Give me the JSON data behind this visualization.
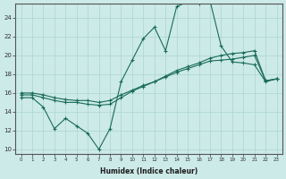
{
  "bg_color": "#cceae8",
  "grid_color": "#b0d8d8",
  "line_color": "#1a6b5a",
  "xlabel": "Humidex (Indice chaleur)",
  "xlim": [
    -0.5,
    23.5
  ],
  "ylim": [
    9.5,
    25.5
  ],
  "yticks": [
    10,
    12,
    14,
    16,
    18,
    20,
    22,
    24
  ],
  "xticks": [
    0,
    1,
    2,
    3,
    4,
    5,
    6,
    7,
    8,
    9,
    10,
    11,
    12,
    13,
    14,
    15,
    16,
    17,
    18,
    19,
    20,
    21,
    22,
    23
  ],
  "line1_x": [
    0,
    1,
    2,
    3,
    4,
    5,
    6,
    7,
    8,
    9,
    10,
    11,
    12,
    13,
    14,
    15,
    16,
    17,
    18,
    19,
    20,
    21,
    22,
    23
  ],
  "line1_y": [
    15.5,
    15.5,
    14.5,
    12.2,
    13.3,
    12.5,
    11.7,
    10.0,
    12.2,
    17.2,
    19.5,
    21.8,
    23.0,
    20.5,
    25.2,
    25.7,
    25.5,
    25.8,
    21.0,
    19.3,
    19.2,
    19.0,
    17.2,
    17.5
  ],
  "line2_x": [
    0,
    1,
    2,
    3,
    4,
    5,
    6,
    7,
    8,
    9,
    10,
    11,
    12,
    13,
    14,
    15,
    16,
    17,
    18,
    19,
    20,
    21,
    22,
    23
  ],
  "line2_y": [
    15.8,
    15.8,
    15.5,
    15.2,
    15.0,
    15.0,
    14.8,
    14.7,
    14.8,
    15.5,
    16.2,
    16.7,
    17.2,
    17.7,
    18.2,
    18.6,
    19.0,
    19.4,
    19.5,
    19.6,
    19.8,
    20.0,
    17.3,
    17.5
  ],
  "line3_x": [
    0,
    1,
    2,
    3,
    4,
    5,
    6,
    7,
    8,
    9,
    10,
    11,
    12,
    13,
    14,
    15,
    16,
    17,
    18,
    19,
    20,
    21,
    22,
    23
  ],
  "line3_y": [
    16.0,
    16.0,
    15.8,
    15.5,
    15.3,
    15.2,
    15.2,
    15.0,
    15.2,
    15.8,
    16.3,
    16.8,
    17.2,
    17.8,
    18.4,
    18.8,
    19.2,
    19.7,
    20.0,
    20.2,
    20.3,
    20.5,
    17.3,
    17.5
  ]
}
